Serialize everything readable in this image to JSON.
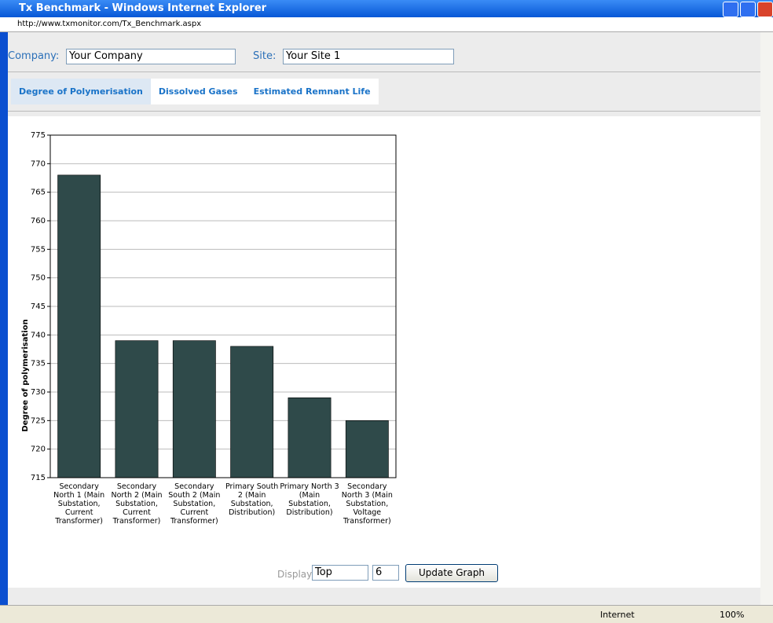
{
  "window": {
    "title": "Tx Benchmark - Windows Internet Explorer",
    "url": "http://www.txmonitor.com/Tx_Benchmark.aspx"
  },
  "filters": {
    "company_label": "Company:",
    "company": "Your Company",
    "site_label": "Site:",
    "site": "Your Site 1"
  },
  "tabs": [
    "Degree of Polymerisation",
    "Dissolved Gases",
    "Estimated Remnant Life"
  ],
  "chart_data": {
    "type": "bar",
    "ylabel": "Degree of polymerisation",
    "categories": [
      "Secondary North 1 (Main Substation, Current Transformer)",
      "Secondary North 2 (Main Substation, Current Transformer)",
      "Secondary South 2 (Main Substation, Current Transformer)",
      "Primary South 2 (Main Substation, Distribution)",
      "Primary North 3 (Main Substation, Distribution)",
      "Secondary North 3 (Main Substation, Voltage Transformer)"
    ],
    "values": [
      768,
      739,
      739,
      738,
      729,
      725
    ],
    "color": "#2f4a4a",
    "ylim": [
      715,
      775
    ],
    "yticks": [
      715,
      720,
      725,
      730,
      735,
      740,
      745,
      750,
      755,
      760,
      765,
      770,
      775
    ],
    "grid": true
  },
  "controls": {
    "display_label": "Display",
    "display": "Top",
    "count": "6",
    "button": "Update Graph"
  },
  "status": {
    "zone": "Internet",
    "zoom": "100%"
  }
}
